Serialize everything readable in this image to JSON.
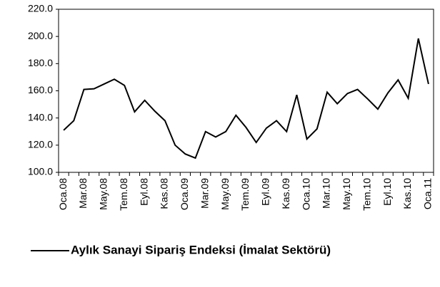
{
  "chart_data": {
    "type": "line",
    "categories": [
      "Oca.08",
      null,
      "Mar.08",
      null,
      "May.08",
      null,
      "Tem.08",
      null,
      "Eyl.08",
      null,
      "Kas.08",
      null,
      "Oca.09",
      null,
      "Mar.09",
      null,
      "May.09",
      null,
      "Tem.09",
      null,
      "Eyl.09",
      null,
      "Kas.09",
      null,
      "Oca.10",
      null,
      "Mar.10",
      null,
      "May.10",
      null,
      "Tem.10",
      null,
      "Eyl.10",
      null,
      "Kas.10",
      null,
      "Oca.11"
    ],
    "series": [
      {
        "name": "Aylık Sanayi Sipariş Endeksi (İmalat Sektörü)",
        "color": "#000000",
        "values": [
          131,
          138,
          161,
          161.5,
          165,
          168.5,
          164,
          144.5,
          153,
          145,
          138,
          120,
          113.5,
          110.5,
          130,
          126,
          130,
          142,
          133,
          122,
          132.5,
          138,
          130,
          157,
          124.5,
          132,
          159,
          150.5,
          158,
          161,
          154,
          146.5,
          158.5,
          168,
          154.5,
          198.5,
          165
        ]
      }
    ],
    "ylim": [
      100,
      220
    ],
    "yticks": [
      {
        "value": 100,
        "label": "100.0"
      },
      {
        "value": 120,
        "label": "120.0"
      },
      {
        "value": 140,
        "label": "140.0"
      },
      {
        "value": 160,
        "label": "160.0"
      },
      {
        "value": 180,
        "label": "180.0"
      },
      {
        "value": 200,
        "label": "200.0"
      },
      {
        "value": 220,
        "label": "220.0"
      }
    ],
    "grid": false,
    "legend": "bottom"
  }
}
